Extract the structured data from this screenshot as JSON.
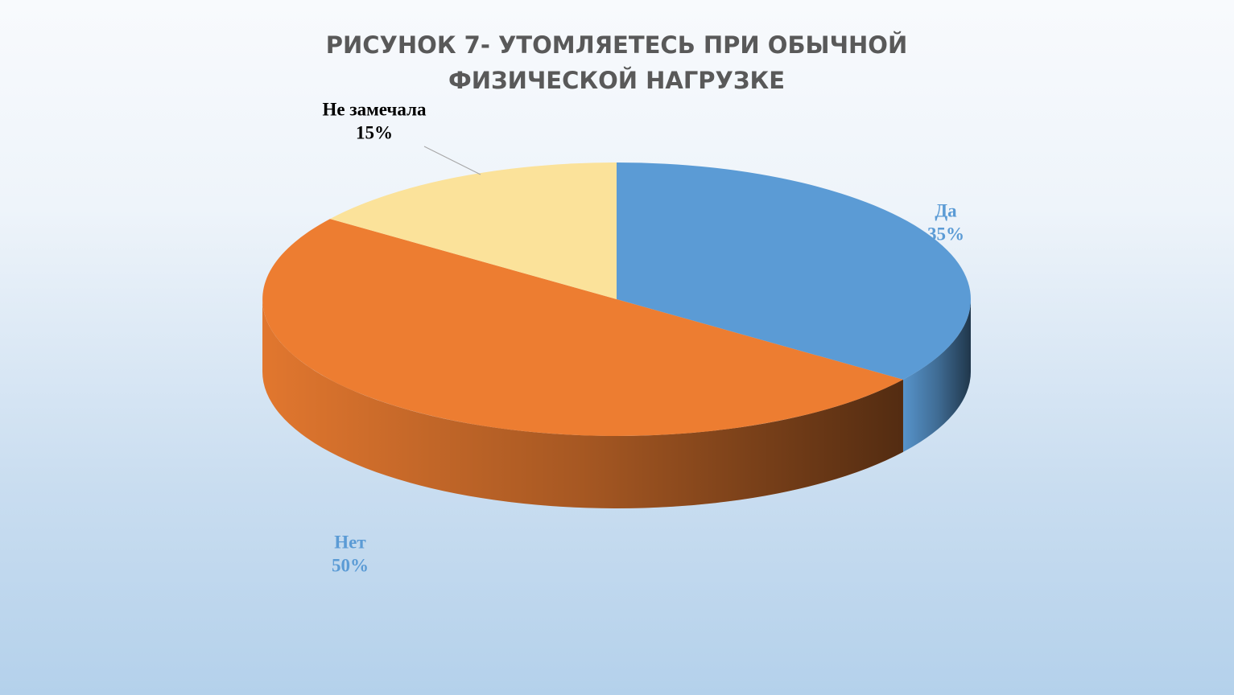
{
  "chart_data": {
    "type": "pie3d",
    "title": "РИСУНОК 7- УТОМЛЯЕТЕСЬ ПРИ ОБЫЧНОЙ ФИЗИЧЕСКОЙ НАГРУЗКЕ",
    "categories": [
      "Да",
      "Нет",
      "Не замечала"
    ],
    "values": [
      35,
      50,
      15
    ],
    "value_labels": [
      "35%",
      "50%",
      "15%"
    ],
    "colors": [
      "#5b9bd5",
      "#ed7d31",
      "#fbe29a"
    ]
  }
}
